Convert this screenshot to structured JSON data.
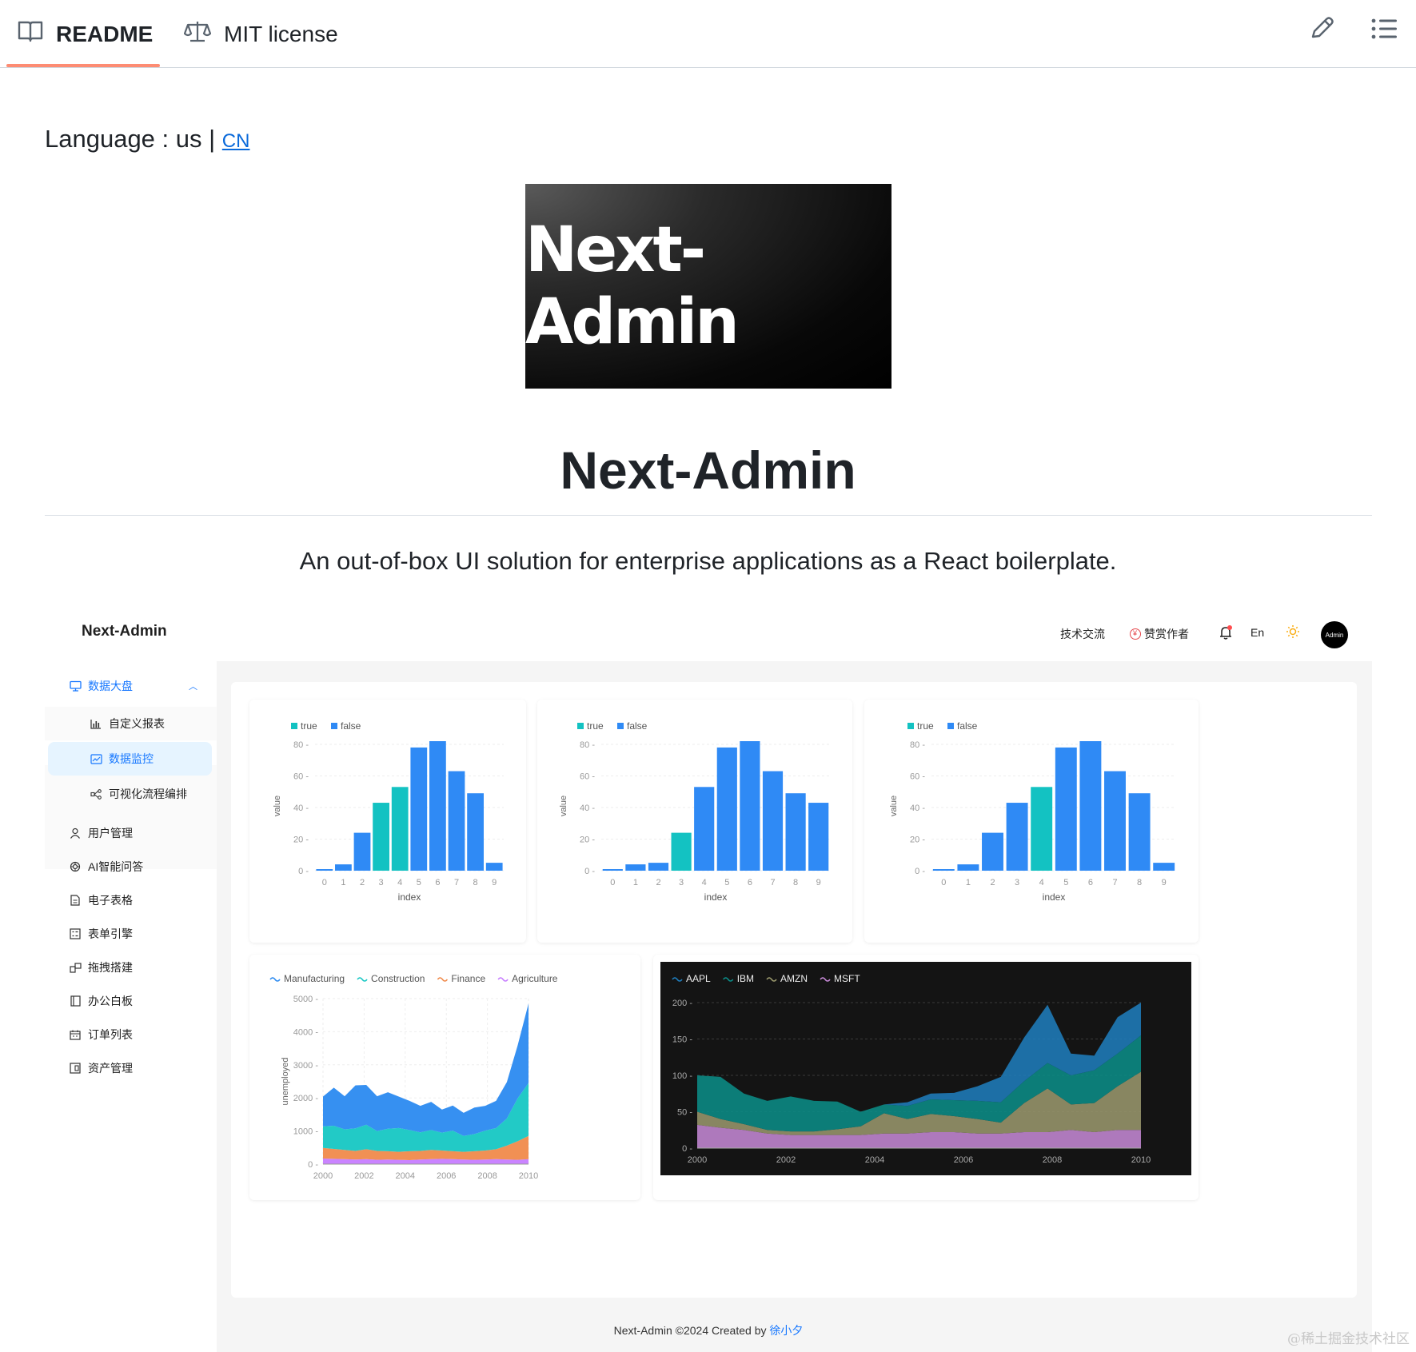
{
  "tabs": {
    "readme_label": "README",
    "license_label": "MIT license"
  },
  "readme": {
    "language_prefix": "Language : us | ",
    "language_link": "CN",
    "logo_text": "Next-Admin",
    "title": "Next-Admin",
    "subtitle": "An out-of-box UI solution for enterprise applications as a React boilerplate."
  },
  "admin": {
    "brand": "Next-Admin",
    "header": {
      "tech_label": "技术交流",
      "sponsor_label": "赞赏作者",
      "lang_label": "En",
      "avatar_label": "Admin"
    },
    "menu": [
      {
        "label": "数据大盘",
        "icon": "monitor-icon"
      },
      {
        "label": "自定义报表",
        "icon": "bar-chart-icon"
      },
      {
        "label": "数据监控",
        "icon": "line-chart-icon"
      },
      {
        "label": "可视化流程编排",
        "icon": "flow-icon"
      },
      {
        "label": "用户管理",
        "icon": "user-icon"
      },
      {
        "label": "AI智能问答",
        "icon": "ai-icon"
      },
      {
        "label": "电子表格",
        "icon": "file-icon"
      },
      {
        "label": "表单引擎",
        "icon": "form-icon"
      },
      {
        "label": "拖拽搭建",
        "icon": "drag-icon"
      },
      {
        "label": "办公白板",
        "icon": "board-icon"
      },
      {
        "label": "订单列表",
        "icon": "calendar-icon"
      },
      {
        "label": "资产管理",
        "icon": "asset-icon"
      }
    ],
    "footer_prefix": "Next-Admin ©2024 Created by ",
    "footer_author": "徐小夕",
    "colors": {
      "primary": "#1677ff",
      "teal": "#13c2c2",
      "bar_blue": "#2f8af5"
    }
  },
  "watermark": "@稀土掘金技术社区",
  "chart_data": [
    {
      "type": "bar",
      "legend": [
        "true",
        "false"
      ],
      "xlabel": "index",
      "ylabel": "value",
      "categories": [
        "0",
        "1",
        "2",
        "3",
        "4",
        "5",
        "6",
        "7",
        "8",
        "9"
      ],
      "values": [
        1,
        4,
        24,
        43,
        53,
        78,
        82,
        63,
        49,
        5
      ],
      "true_flags": [
        false,
        false,
        false,
        true,
        true,
        false,
        false,
        false,
        false,
        false
      ],
      "yticks": [
        0,
        20,
        40,
        60,
        80
      ],
      "ylim": [
        0,
        82
      ]
    },
    {
      "type": "bar",
      "legend": [
        "true",
        "false"
      ],
      "xlabel": "index",
      "ylabel": "value",
      "categories": [
        "0",
        "1",
        "2",
        "3",
        "4",
        "5",
        "6",
        "7",
        "8",
        "9"
      ],
      "values": [
        1,
        4,
        5,
        24,
        53,
        78,
        82,
        63,
        49,
        43
      ],
      "true_flags": [
        false,
        false,
        false,
        true,
        false,
        false,
        false,
        false,
        false,
        false
      ],
      "yticks": [
        0,
        20,
        40,
        60,
        80
      ],
      "ylim": [
        0,
        82
      ]
    },
    {
      "type": "bar",
      "legend": [
        "true",
        "false"
      ],
      "xlabel": "index",
      "ylabel": "value",
      "categories": [
        "0",
        "1",
        "2",
        "3",
        "4",
        "5",
        "6",
        "7",
        "8",
        "9"
      ],
      "values": [
        1,
        4,
        24,
        43,
        53,
        78,
        82,
        63,
        49,
        5
      ],
      "true_flags": [
        false,
        false,
        false,
        false,
        true,
        false,
        false,
        false,
        false,
        false
      ],
      "yticks": [
        0,
        20,
        40,
        60,
        80
      ],
      "ylim": [
        0,
        82
      ]
    },
    {
      "type": "area",
      "stacked": true,
      "ylabel": "unemployed",
      "xticks": [
        2000,
        2002,
        2004,
        2006,
        2008,
        2010
      ],
      "yticks": [
        0,
        1000,
        2000,
        3000,
        4000,
        5000
      ],
      "ylim": [
        0,
        5000
      ],
      "xlim": [
        2000,
        2010
      ],
      "series": [
        {
          "name": "Agriculture",
          "color": "#c77dff",
          "values": [
            170,
            160,
            150,
            140,
            150,
            130,
            140,
            130,
            120,
            140,
            150,
            160,
            150,
            140,
            130,
            140,
            150,
            140,
            130,
            150
          ]
        },
        {
          "name": "Finance",
          "color": "#f08a4b",
          "values": [
            320,
            300,
            280,
            260,
            300,
            270,
            250,
            240,
            270,
            260,
            280,
            250,
            240,
            230,
            260,
            270,
            300,
            420,
            560,
            700
          ]
        },
        {
          "name": "Construction",
          "color": "#16c7c3",
          "values": [
            650,
            700,
            620,
            680,
            740,
            600,
            680,
            720,
            640,
            560,
            600,
            540,
            620,
            480,
            520,
            600,
            640,
            820,
            1300,
            1600
          ]
        },
        {
          "name": "Manufacturing",
          "color": "#2b8af0",
          "values": [
            900,
            1150,
            1000,
            1300,
            1200,
            1050,
            1100,
            950,
            880,
            800,
            850,
            700,
            760,
            700,
            800,
            750,
            820,
            1100,
            1600,
            2400
          ]
        }
      ]
    },
    {
      "type": "area",
      "stacked": true,
      "theme": "dark",
      "xticks": [
        2000,
        2002,
        2004,
        2006,
        2008,
        2010
      ],
      "yticks": [
        0,
        50,
        100,
        150,
        200
      ],
      "ylim": [
        0,
        200
      ],
      "xlim": [
        2000,
        2010
      ],
      "series": [
        {
          "name": "MSFT",
          "color": "#c98bd9",
          "values": [
            32,
            28,
            25,
            20,
            18,
            18,
            18,
            18,
            20,
            20,
            22,
            22,
            20,
            20,
            22,
            22,
            25,
            22,
            25,
            25
          ]
        },
        {
          "name": "AMZN",
          "color": "#9c9a6e",
          "values": [
            18,
            12,
            8,
            5,
            5,
            5,
            8,
            12,
            28,
            20,
            25,
            22,
            20,
            15,
            40,
            60,
            35,
            40,
            60,
            80
          ]
        },
        {
          "name": "IBM",
          "color": "#0b8f8a",
          "values": [
            50,
            58,
            42,
            40,
            48,
            42,
            38,
            20,
            12,
            18,
            20,
            22,
            25,
            28,
            30,
            35,
            40,
            45,
            45,
            50
          ]
        },
        {
          "name": "AAPL",
          "color": "#1f7fbf",
          "values": [
            0,
            0,
            0,
            0,
            0,
            0,
            0,
            0,
            0,
            5,
            8,
            10,
            20,
            35,
            60,
            80,
            30,
            20,
            50,
            70
          ]
        }
      ]
    }
  ]
}
